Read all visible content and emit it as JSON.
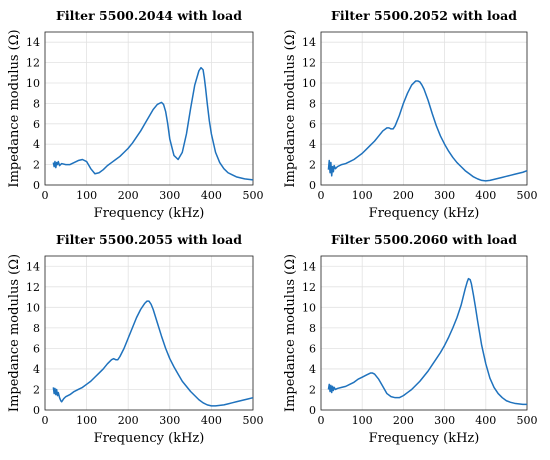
{
  "chart_data": [
    {
      "type": "line",
      "title": "Filter 5500.2044 with load",
      "xlabel": "Frequency (kHz)",
      "ylabel": "Impedance modulus (Ω)",
      "xlim": [
        0,
        500
      ],
      "ylim": [
        0,
        15
      ],
      "xticks": [
        "0",
        "100",
        "200",
        "300",
        "400",
        "500"
      ],
      "yticks": [
        "0",
        "2",
        "4",
        "6",
        "8",
        "10",
        "12",
        "14"
      ],
      "grid": true,
      "series": [
        {
          "color": "#1f72bd",
          "x": [
            20,
            22,
            24,
            26,
            28,
            30,
            32,
            35,
            40,
            50,
            60,
            70,
            80,
            90,
            100,
            110,
            120,
            130,
            140,
            150,
            160,
            170,
            180,
            190,
            200,
            210,
            220,
            230,
            240,
            250,
            260,
            270,
            280,
            285,
            290,
            295,
            300,
            310,
            320,
            330,
            340,
            350,
            360,
            370,
            375,
            380,
            383,
            386,
            390,
            395,
            400,
            410,
            420,
            430,
            440,
            450,
            460,
            470,
            480,
            490,
            500
          ],
          "y": [
            2.2,
            1.8,
            2.3,
            1.7,
            2.2,
            2.0,
            2.3,
            1.9,
            2.1,
            2.0,
            2.0,
            2.2,
            2.4,
            2.5,
            2.3,
            1.6,
            1.1,
            1.2,
            1.5,
            1.9,
            2.2,
            2.5,
            2.8,
            3.2,
            3.6,
            4.1,
            4.7,
            5.3,
            6.0,
            6.7,
            7.4,
            7.9,
            8.1,
            7.9,
            7.2,
            6.0,
            4.5,
            2.9,
            2.5,
            3.2,
            5.0,
            7.5,
            9.8,
            11.2,
            11.5,
            11.3,
            10.5,
            9.5,
            8.0,
            6.3,
            5.0,
            3.2,
            2.2,
            1.6,
            1.2,
            1.0,
            0.8,
            0.7,
            0.6,
            0.55,
            0.5
          ]
        }
      ]
    },
    {
      "type": "line",
      "title": "Filter 5500.2052 with load",
      "xlabel": "Frequency (kHz)",
      "ylabel": "Impedance modulus (Ω)",
      "xlim": [
        0,
        500
      ],
      "ylim": [
        0,
        15
      ],
      "xticks": [
        "0",
        "100",
        "200",
        "300",
        "400",
        "500"
      ],
      "yticks": [
        "0",
        "2",
        "4",
        "6",
        "8",
        "10",
        "12",
        "14"
      ],
      "grid": true,
      "series": [
        {
          "color": "#1f72bd",
          "x": [
            18,
            20,
            22,
            24,
            26,
            28,
            30,
            32,
            35,
            40,
            50,
            60,
            70,
            80,
            90,
            100,
            110,
            120,
            130,
            140,
            150,
            160,
            165,
            170,
            175,
            180,
            190,
            200,
            210,
            220,
            230,
            235,
            240,
            245,
            250,
            260,
            270,
            280,
            290,
            300,
            310,
            320,
            330,
            340,
            350,
            360,
            370,
            380,
            390,
            400,
            410,
            420,
            430,
            440,
            450,
            460,
            470,
            480,
            490,
            500
          ],
          "y": [
            1.5,
            2.4,
            1.2,
            2.2,
            0.9,
            1.8,
            1.3,
            1.9,
            1.6,
            1.8,
            2.0,
            2.1,
            2.3,
            2.5,
            2.8,
            3.1,
            3.5,
            3.9,
            4.3,
            4.8,
            5.3,
            5.6,
            5.6,
            5.5,
            5.5,
            5.8,
            6.8,
            8.0,
            9.0,
            9.8,
            10.2,
            10.2,
            10.1,
            9.8,
            9.4,
            8.3,
            7.0,
            5.8,
            4.8,
            4.0,
            3.3,
            2.7,
            2.2,
            1.8,
            1.4,
            1.1,
            0.8,
            0.6,
            0.45,
            0.4,
            0.45,
            0.55,
            0.65,
            0.75,
            0.85,
            0.95,
            1.05,
            1.15,
            1.25,
            1.4
          ]
        }
      ]
    },
    {
      "type": "line",
      "title": "Filter 5500.2055 with load",
      "xlabel": "Frequency (kHz)",
      "ylabel": "Impedance modulus (Ω)",
      "xlim": [
        0,
        500
      ],
      "ylim": [
        0,
        15
      ],
      "xticks": [
        "0",
        "100",
        "200",
        "300",
        "400",
        "500"
      ],
      "yticks": [
        "0",
        "2",
        "4",
        "6",
        "8",
        "10",
        "12",
        "14"
      ],
      "grid": true,
      "series": [
        {
          "color": "#1f72bd",
          "x": [
            20,
            22,
            24,
            26,
            28,
            30,
            32,
            35,
            38,
            40,
            45,
            50,
            60,
            70,
            80,
            90,
            100,
            110,
            120,
            130,
            140,
            150,
            160,
            165,
            170,
            175,
            180,
            190,
            200,
            210,
            220,
            230,
            240,
            245,
            250,
            255,
            260,
            270,
            280,
            290,
            300,
            310,
            320,
            330,
            340,
            350,
            360,
            370,
            380,
            390,
            400,
            410,
            420,
            430,
            440,
            450,
            460,
            470,
            480,
            490,
            500
          ],
          "y": [
            2.2,
            1.6,
            2.1,
            1.5,
            2.0,
            1.4,
            1.7,
            1.2,
            0.9,
            0.8,
            1.1,
            1.3,
            1.5,
            1.8,
            2.0,
            2.2,
            2.5,
            2.8,
            3.2,
            3.6,
            4.0,
            4.5,
            4.9,
            5.0,
            4.9,
            4.9,
            5.2,
            6.0,
            7.0,
            8.0,
            9.0,
            9.8,
            10.4,
            10.6,
            10.6,
            10.3,
            9.8,
            8.5,
            7.2,
            6.0,
            5.0,
            4.2,
            3.5,
            2.8,
            2.3,
            1.8,
            1.4,
            1.0,
            0.7,
            0.5,
            0.4,
            0.4,
            0.45,
            0.5,
            0.6,
            0.7,
            0.8,
            0.9,
            1.0,
            1.1,
            1.2
          ]
        }
      ]
    },
    {
      "type": "line",
      "title": "Filter 5500.2060 with load",
      "xlabel": "Frequency (kHz)",
      "ylabel": "Impedance modulus (Ω)",
      "xlim": [
        0,
        500
      ],
      "ylim": [
        0,
        15
      ],
      "xticks": [
        "0",
        "100",
        "200",
        "300",
        "400",
        "500"
      ],
      "yticks": [
        "0",
        "2",
        "4",
        "6",
        "8",
        "10",
        "12",
        "14"
      ],
      "grid": true,
      "series": [
        {
          "color": "#1f72bd",
          "x": [
            18,
            20,
            22,
            24,
            26,
            28,
            30,
            32,
            35,
            40,
            50,
            60,
            70,
            80,
            90,
            100,
            110,
            120,
            125,
            130,
            140,
            150,
            160,
            170,
            180,
            190,
            200,
            210,
            220,
            230,
            240,
            250,
            260,
            270,
            280,
            290,
            300,
            310,
            320,
            330,
            340,
            345,
            350,
            355,
            358,
            362,
            365,
            370,
            375,
            380,
            385,
            390,
            400,
            410,
            420,
            430,
            440,
            450,
            460,
            470,
            480,
            490,
            500
          ],
          "y": [
            2.0,
            2.5,
            1.8,
            2.4,
            1.7,
            2.3,
            1.9,
            2.2,
            2.0,
            2.1,
            2.2,
            2.3,
            2.5,
            2.7,
            3.0,
            3.2,
            3.4,
            3.6,
            3.6,
            3.5,
            3.0,
            2.3,
            1.6,
            1.3,
            1.2,
            1.2,
            1.4,
            1.7,
            2.0,
            2.4,
            2.8,
            3.3,
            3.8,
            4.4,
            5.0,
            5.6,
            6.3,
            7.1,
            8.0,
            9.0,
            10.2,
            11.0,
            11.8,
            12.5,
            12.8,
            12.7,
            12.3,
            11.2,
            10.0,
            8.7,
            7.5,
            6.3,
            4.5,
            3.1,
            2.2,
            1.6,
            1.2,
            0.9,
            0.75,
            0.65,
            0.6,
            0.55,
            0.55
          ]
        }
      ]
    }
  ]
}
